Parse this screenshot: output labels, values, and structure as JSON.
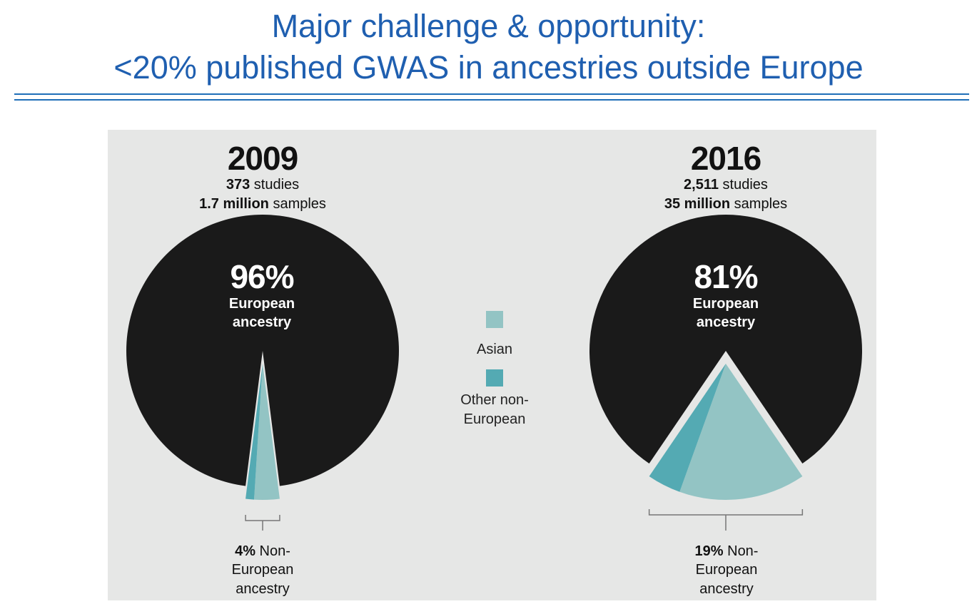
{
  "page": {
    "title_line1": "Major challenge & opportunity:",
    "title_line2": "<20% published GWAS in ancestries outside Europe"
  },
  "colors": {
    "title": "#1f5fb0",
    "european": "#1a1a1a",
    "asian": "#93c4c4",
    "other_non_european": "#54aab3",
    "background": "#e6e7e6"
  },
  "legend": {
    "asian": "Asian",
    "other_line1": "Other non-",
    "other_line2": "European"
  },
  "charts": [
    {
      "year": "2009",
      "studies_value": "373",
      "studies_unit": " studies",
      "samples_value": "1.7 million",
      "samples_unit": " samples",
      "european_pct": "96%",
      "european_line1": "European",
      "european_line2": "ancestry",
      "non_eu_pct": "4%",
      "non_eu_line1": " Non-",
      "non_eu_line2": "European",
      "non_eu_line3": "ancestry"
    },
    {
      "year": "2016",
      "studies_value": "2,511",
      "studies_unit": " studies",
      "samples_value": "35 million",
      "samples_unit": " samples",
      "european_pct": "81%",
      "european_line1": "European",
      "european_line2": "ancestry",
      "non_eu_pct": "19%",
      "non_eu_line1": " Non-",
      "non_eu_line2": "European",
      "non_eu_line3": "ancestry"
    }
  ],
  "chart_data": [
    {
      "type": "pie",
      "title": "2009",
      "series": [
        {
          "name": "European ancestry",
          "value": 96
        },
        {
          "name": "Asian",
          "value": 3
        },
        {
          "name": "Other non-European",
          "value": 1
        }
      ]
    },
    {
      "type": "pie",
      "title": "2016",
      "series": [
        {
          "name": "European ancestry",
          "value": 81
        },
        {
          "name": "Asian",
          "value": 15
        },
        {
          "name": "Other non-European",
          "value": 4
        }
      ]
    }
  ]
}
